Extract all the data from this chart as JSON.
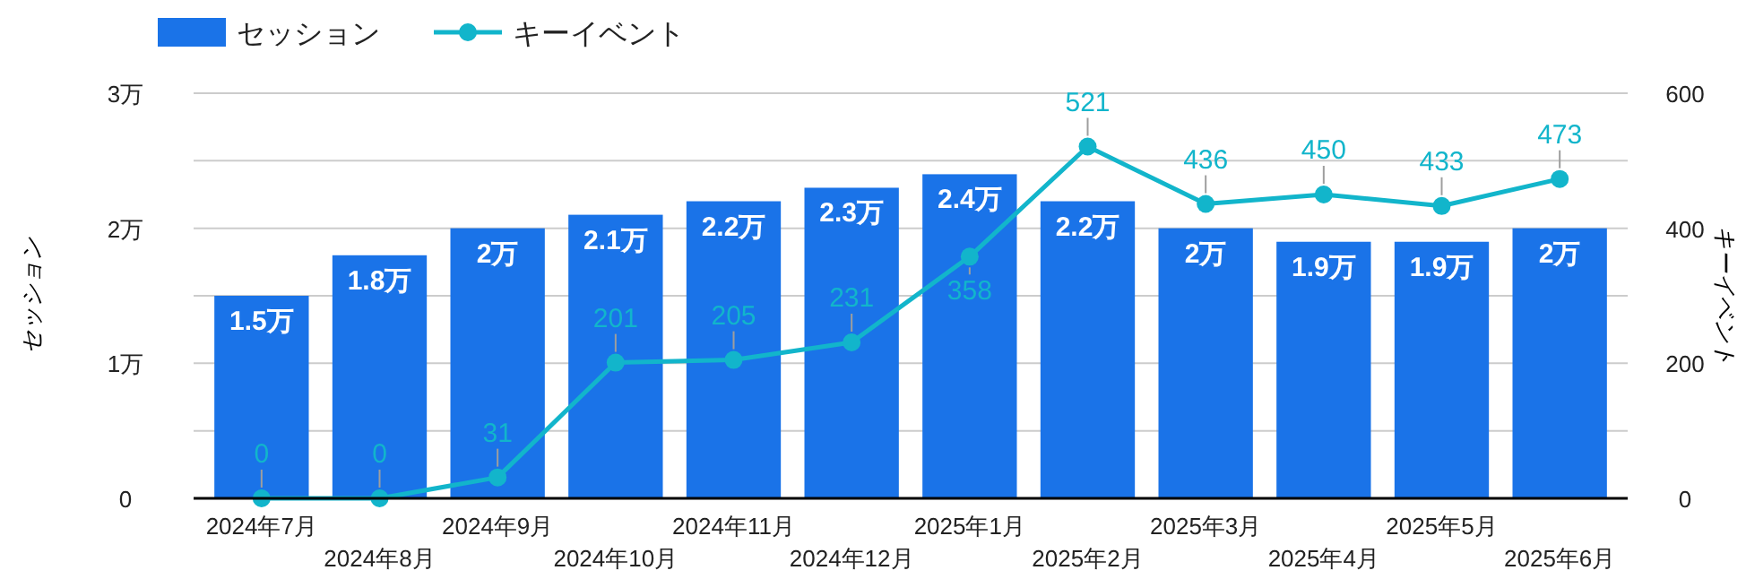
{
  "chart_data": {
    "type": "bar",
    "ylabel": "セッション",
    "y2label": "キーイベント",
    "legend": "top left",
    "grid": "y",
    "categories": [
      "2024年7月",
      "2024年8月",
      "2024年9月",
      "2024年10月",
      "2024年11月",
      "2024年12月",
      "2025年1月",
      "2025年2月",
      "2025年3月",
      "2025年4月",
      "2025年5月",
      "2025年6月"
    ],
    "ylim": [
      0,
      3
    ],
    "yticks": [
      0,
      {
        "value": 0.5,
        "label": null
      },
      {
        "value": 1,
        "label": "1万"
      },
      {
        "value": 1.5,
        "label": null
      },
      {
        "value": 2,
        "label": "2万"
      },
      {
        "value": 2.5,
        "label": null
      },
      {
        "value": 3,
        "label": "3万"
      }
    ],
    "y2lim": [
      0,
      600
    ],
    "y2ticks": [
      0,
      200,
      400,
      600
    ],
    "series": [
      {
        "name": "セッション",
        "color": "#1a73e8",
        "values": [
          1.5,
          1.8,
          2,
          2.1,
          2.2,
          2.3,
          2.4,
          2.2,
          2,
          1.9,
          1.9,
          2
        ],
        "value_labels": [
          "1.5万",
          "1.8万",
          "2万",
          "2.1万",
          "2.2万",
          "2.3万",
          "2.4万",
          "2.2万",
          "2万",
          "1.9万",
          "1.9万",
          "2万"
        ]
      },
      {
        "name": "キーイベント",
        "type": "line",
        "axis": "y2",
        "color": "#12b5cb",
        "marker": "circle",
        "data_labels": true,
        "values": [
          0,
          0,
          31,
          201,
          205,
          231,
          358,
          521,
          436,
          450,
          433,
          473
        ]
      }
    ]
  }
}
